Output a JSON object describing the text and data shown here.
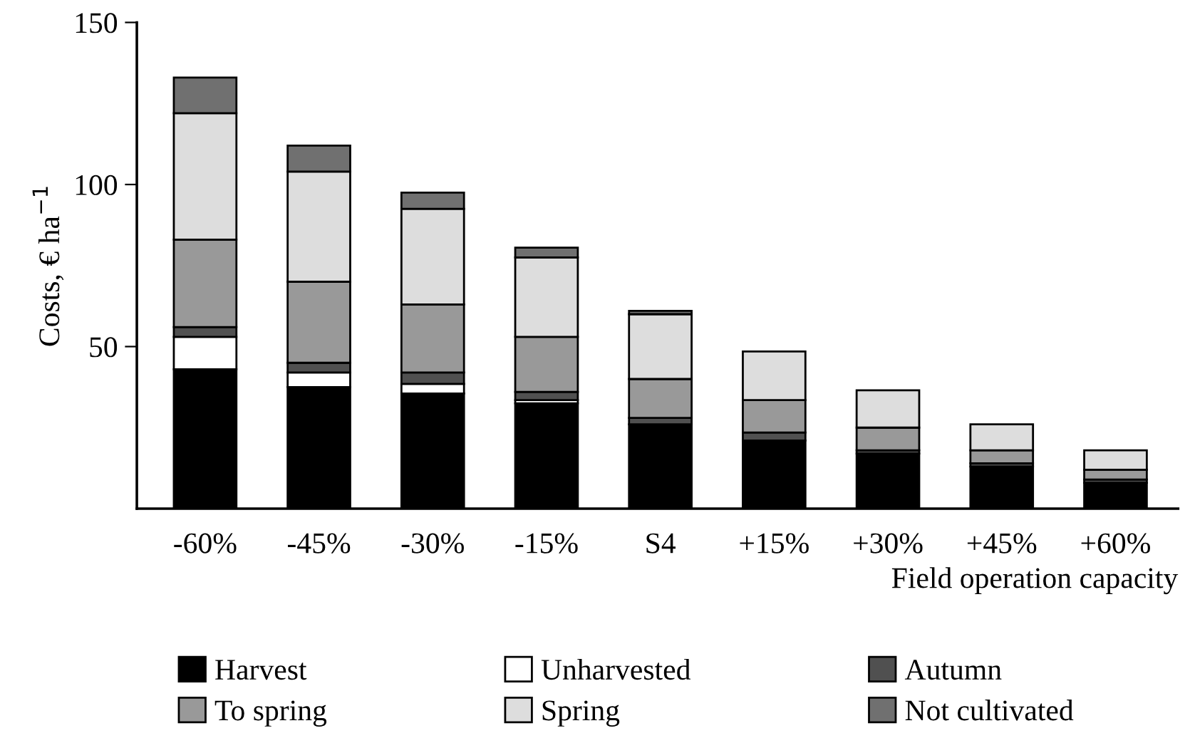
{
  "chart_data": {
    "type": "bar",
    "stacked": true,
    "xlabel": "Field operation capacity",
    "ylabel": "Costs, € ha$^{−1}$",
    "categories": [
      "-60%",
      "-45%",
      "-30%",
      "-15%",
      "S4",
      "+15%",
      "+30%",
      "+45%",
      "+60%"
    ],
    "series": [
      {
        "name": "Harvest",
        "color": "#000000",
        "values": [
          43,
          37.5,
          35.5,
          32.5,
          26,
          21,
          17,
          13,
          8
        ]
      },
      {
        "name": "Unharvested",
        "color": "#ffffff",
        "values": [
          10,
          4.5,
          3,
          1,
          null,
          null,
          0,
          0,
          0
        ]
      },
      {
        "name": "Autumn",
        "color": "#505050",
        "values": [
          3,
          3,
          3.5,
          2.5,
          2,
          2.5,
          1,
          1,
          1
        ]
      },
      {
        "name": "To spring",
        "color": "#999999",
        "values": [
          27,
          25,
          21,
          17,
          12,
          10,
          7,
          4,
          3
        ]
      },
      {
        "name": "Spring",
        "color": "#dddddd",
        "values": [
          39,
          34,
          29.5,
          24.5,
          20,
          15,
          11.5,
          8,
          6
        ]
      },
      {
        "name": "Not cultivated",
        "color": "#707070",
        "values": [
          11,
          8,
          5,
          3,
          1,
          0,
          0,
          0,
          0
        ]
      }
    ],
    "ylim": [
      0,
      150
    ],
    "yticks": [
      50,
      100,
      150
    ],
    "grid": false,
    "legend": "bottom"
  }
}
